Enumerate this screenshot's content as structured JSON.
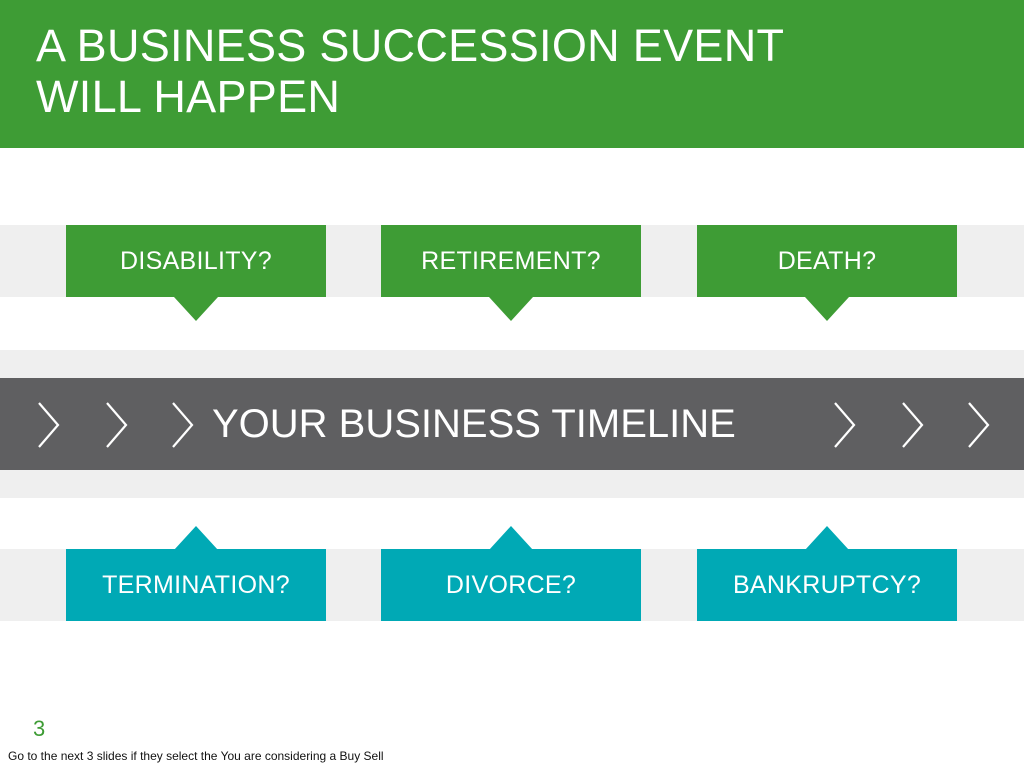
{
  "title": {
    "line1": "A BUSINESS SUCCESSION EVENT",
    "line2": "WILL HAPPEN"
  },
  "events_top": [
    {
      "label": "DISABILITY?"
    },
    {
      "label": "RETIREMENT?"
    },
    {
      "label": "DEATH?"
    }
  ],
  "timeline": {
    "label": "YOUR BUSINESS TIMELINE",
    "left_chevrons": [
      "chevron-right-icon",
      "chevron-right-icon",
      "chevron-right-icon"
    ],
    "right_chevrons": [
      "chevron-right-icon",
      "chevron-right-icon",
      "chevron-right-icon"
    ]
  },
  "events_bottom": [
    {
      "label": "TERMINATION?"
    },
    {
      "label": "DIVORCE?"
    },
    {
      "label": "BANKRUPTCY?"
    }
  ],
  "page_number": "3",
  "notes": "Go to the next 3 slides if they select the You are considering a Buy Sell",
  "colors": {
    "green": "#3e9c35",
    "teal": "#00a9b5",
    "timeline_gray": "#5f5f61",
    "band_gray": "#efefef"
  }
}
